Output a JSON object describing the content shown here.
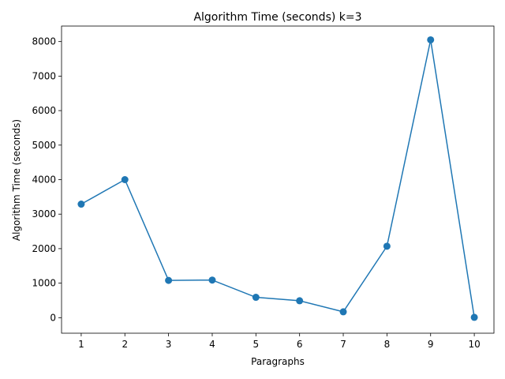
{
  "chart_data": {
    "type": "line",
    "title": "Algorithm Time (seconds) k=3",
    "xlabel": "Paragraphs",
    "ylabel": "Algorithm Time (seconds)",
    "x": [
      1,
      2,
      3,
      4,
      5,
      6,
      7,
      8,
      9,
      10
    ],
    "x_ticks": [
      "1",
      "2",
      "3",
      "4",
      "5",
      "6",
      "7",
      "8",
      "9",
      "10"
    ],
    "y_ticks": [
      "0",
      "1000",
      "2000",
      "3000",
      "4000",
      "5000",
      "6000",
      "7000",
      "8000"
    ],
    "xlim": [
      0.55,
      10.45
    ],
    "ylim": [
      -450,
      8450
    ],
    "series": [
      {
        "values": [
          3290,
          4000,
          1080,
          1090,
          590,
          490,
          170,
          2070,
          8050,
          10
        ],
        "color": "#1f77b4"
      }
    ],
    "marker": "circle",
    "grid": false,
    "legend": "none"
  }
}
